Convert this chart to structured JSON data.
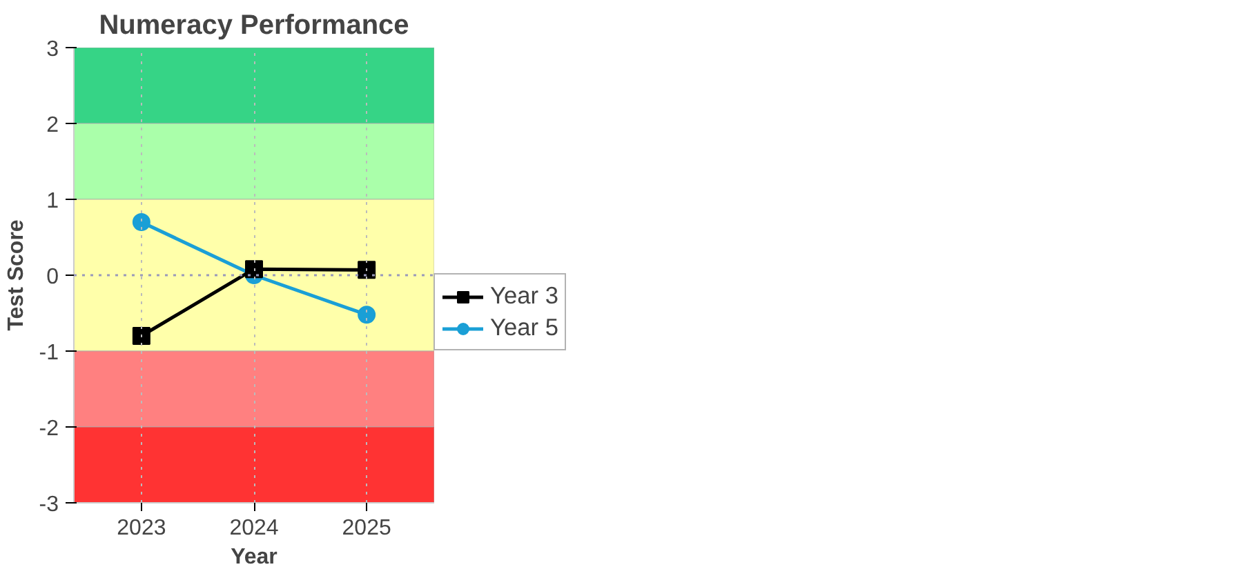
{
  "chart_data": {
    "type": "line",
    "title": "Numeracy Performance",
    "xlabel": "Year",
    "ylabel": "Test Score",
    "categories": [
      "2023",
      "2024",
      "2025"
    ],
    "series": [
      {
        "name": "Year 3",
        "color": "#000000",
        "marker": "square",
        "values": [
          -0.8,
          0.08,
          0.07
        ]
      },
      {
        "name": "Year 5",
        "color": "#1a9fd6",
        "marker": "circle",
        "values": [
          0.7,
          0.0,
          -0.52
        ]
      }
    ],
    "ylim": [
      -3,
      3
    ],
    "yticks": [
      -3,
      -2,
      -1,
      0,
      1,
      2,
      3
    ],
    "bands": [
      {
        "axis": "y",
        "from": 2,
        "to": 3,
        "color": "#36d486"
      },
      {
        "axis": "y",
        "from": 1,
        "to": 2,
        "color": "#aaffaa"
      },
      {
        "axis": "y",
        "from": -1,
        "to": 1,
        "color": "#ffffaa"
      },
      {
        "axis": "y",
        "from": -2,
        "to": -1,
        "color": "#ff8080"
      },
      {
        "axis": "y",
        "from": -3,
        "to": -2,
        "color": "#ff3333"
      }
    ],
    "ref_lines": [
      {
        "axis": "y",
        "value": 0,
        "color": "#9999bb",
        "line_style": "dotted"
      }
    ],
    "grid": "x",
    "legend": "right",
    "line_style": "solid"
  }
}
